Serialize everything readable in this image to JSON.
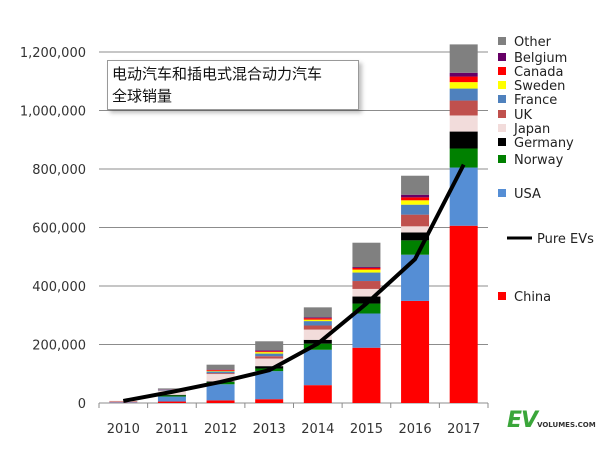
{
  "chart_data": {
    "type": "bar",
    "stacked": true,
    "title": "电动汽车和插电式混合动力汽车全球销量",
    "title_lines": [
      "电动汽车和插电式混合动力汽车",
      "全球销量"
    ],
    "categories": [
      "2010",
      "2011",
      "2012",
      "2013",
      "2014",
      "2015",
      "2016",
      "2017"
    ],
    "ylim": [
      0,
      1200000
    ],
    "yticks": [
      "0",
      "200,000",
      "400,000",
      "600,000",
      "800,000",
      "1,000,000",
      "1,200,000"
    ],
    "ytick_values": [
      0,
      200000,
      400000,
      600000,
      800000,
      1000000,
      1200000
    ],
    "grid": true,
    "legend_position": "right",
    "series": [
      {
        "name": "China",
        "color": "#ff0000",
        "values": [
          1000,
          5000,
          9000,
          13000,
          61000,
          189000,
          349000,
          606000
        ]
      },
      {
        "name": "USA",
        "color": "#558ed5",
        "values": [
          2000,
          17000,
          55000,
          96000,
          121000,
          117000,
          158000,
          199000
        ]
      },
      {
        "name": "Norway",
        "color": "#008000",
        "values": [
          0,
          4000,
          8000,
          9000,
          21000,
          34000,
          49000,
          65000
        ]
      },
      {
        "name": "Germany",
        "color": "#000000",
        "values": [
          0,
          2000,
          2000,
          8000,
          13000,
          24000,
          27000,
          58000
        ]
      },
      {
        "name": "Japan",
        "color": "#f2dcdb",
        "values": [
          2000,
          14000,
          25000,
          26000,
          35000,
          26000,
          21000,
          55000
        ]
      },
      {
        "name": "UK",
        "color": "#c0504d",
        "values": [
          2000,
          1000,
          3000,
          8000,
          14000,
          27000,
          40000,
          51000
        ]
      },
      {
        "name": "France",
        "color": "#4f81bd",
        "values": [
          0,
          3000,
          6000,
          9000,
          15000,
          29000,
          34000,
          41000
        ]
      },
      {
        "name": "Sweden",
        "color": "#ffff00",
        "values": [
          0,
          0,
          2000,
          5000,
          5000,
          10000,
          15000,
          22000
        ]
      },
      {
        "name": "Canada",
        "color": "#ff0000",
        "values": [
          0,
          1000,
          3000,
          3000,
          5000,
          6000,
          10000,
          19000
        ]
      },
      {
        "name": "Belgium",
        "color": "#660066",
        "values": [
          0,
          0,
          1000,
          3000,
          3000,
          3000,
          9000,
          13000
        ]
      },
      {
        "name": "Other",
        "color": "#808080",
        "values": [
          0,
          3000,
          17000,
          31000,
          34000,
          83000,
          65000,
          97000
        ]
      }
    ],
    "line_series": {
      "name": "Pure EVs",
      "color": "#000000",
      "values": [
        7000,
        38000,
        72000,
        112000,
        203000,
        340000,
        492000,
        815000
      ]
    }
  },
  "logo": {
    "ev": "EV",
    "volumes": "VOLUMES.COM"
  }
}
